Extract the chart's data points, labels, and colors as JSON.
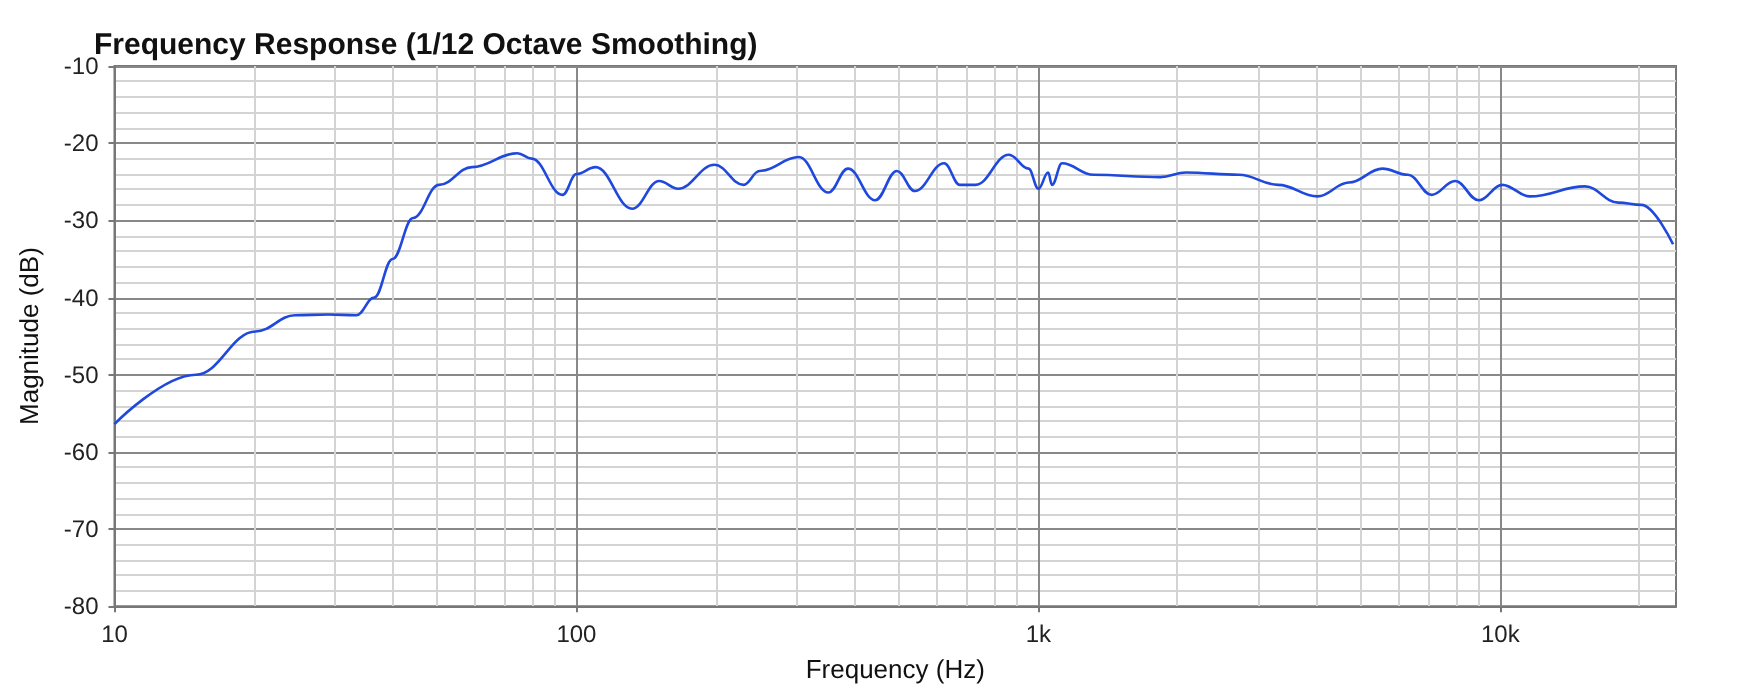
{
  "chart_data": {
    "type": "line",
    "title": "Frequency Response (1/12 Octave Smoothing)",
    "xlabel": "Frequency (Hz)",
    "ylabel": "Magnitude (dB)",
    "log": "x",
    "xlim": [
      10,
      24000
    ],
    "xticks": [
      10,
      100,
      {
        "value": 1000,
        "label": "1k"
      },
      {
        "value": 10000,
        "label": "10k"
      }
    ],
    "ylim": [
      -80,
      -10
    ],
    "yticks": [
      -80,
      -70,
      -60,
      -50,
      -40,
      -30,
      -20,
      -10
    ],
    "grid": true,
    "marker": "none",
    "line_style": "solid",
    "series": [
      {
        "color": "#1f48dc",
        "x": [
          10,
          15,
          20.2,
          24.6,
          29,
          33.4,
          36.5,
          40,
          44.3,
          50.4,
          59.4,
          74.5,
          80,
          93.3,
          100,
          110,
          132,
          151,
          166,
          199,
          230,
          249,
          303,
          351,
          387,
          443,
          494,
          540,
          625,
          676,
          731,
          863,
          952,
          1000,
          1050,
          1070,
          1125,
          1316,
          1837,
          2086,
          2717,
          3305,
          4018,
          4700,
          5555,
          6310,
          7100,
          7980,
          8980,
          10090,
          11590,
          15240,
          18000,
          20200,
          23650
        ],
        "values": [
          -56.4,
          -50,
          -44.4,
          -42.3,
          -42.2,
          -42.3,
          -40,
          -35,
          -29.7,
          -25.4,
          -23.1,
          -21.3,
          -22,
          -26.7,
          -24,
          -23.1,
          -28.5,
          -24.9,
          -25.9,
          -22.8,
          -25.4,
          -23.6,
          -21.8,
          -26.4,
          -23.3,
          -27.4,
          -23.6,
          -26.2,
          -22.6,
          -25.4,
          -25.4,
          -21.5,
          -23.3,
          -25.9,
          -23.8,
          -25.4,
          -22.6,
          -24.1,
          -24.4,
          -23.8,
          -24.1,
          -25.4,
          -26.9,
          -25.1,
          -23.3,
          -24.1,
          -26.7,
          -24.9,
          -27.4,
          -25.4,
          -26.9,
          -25.6,
          -27.7,
          -28,
          -33.1
        ]
      }
    ]
  }
}
